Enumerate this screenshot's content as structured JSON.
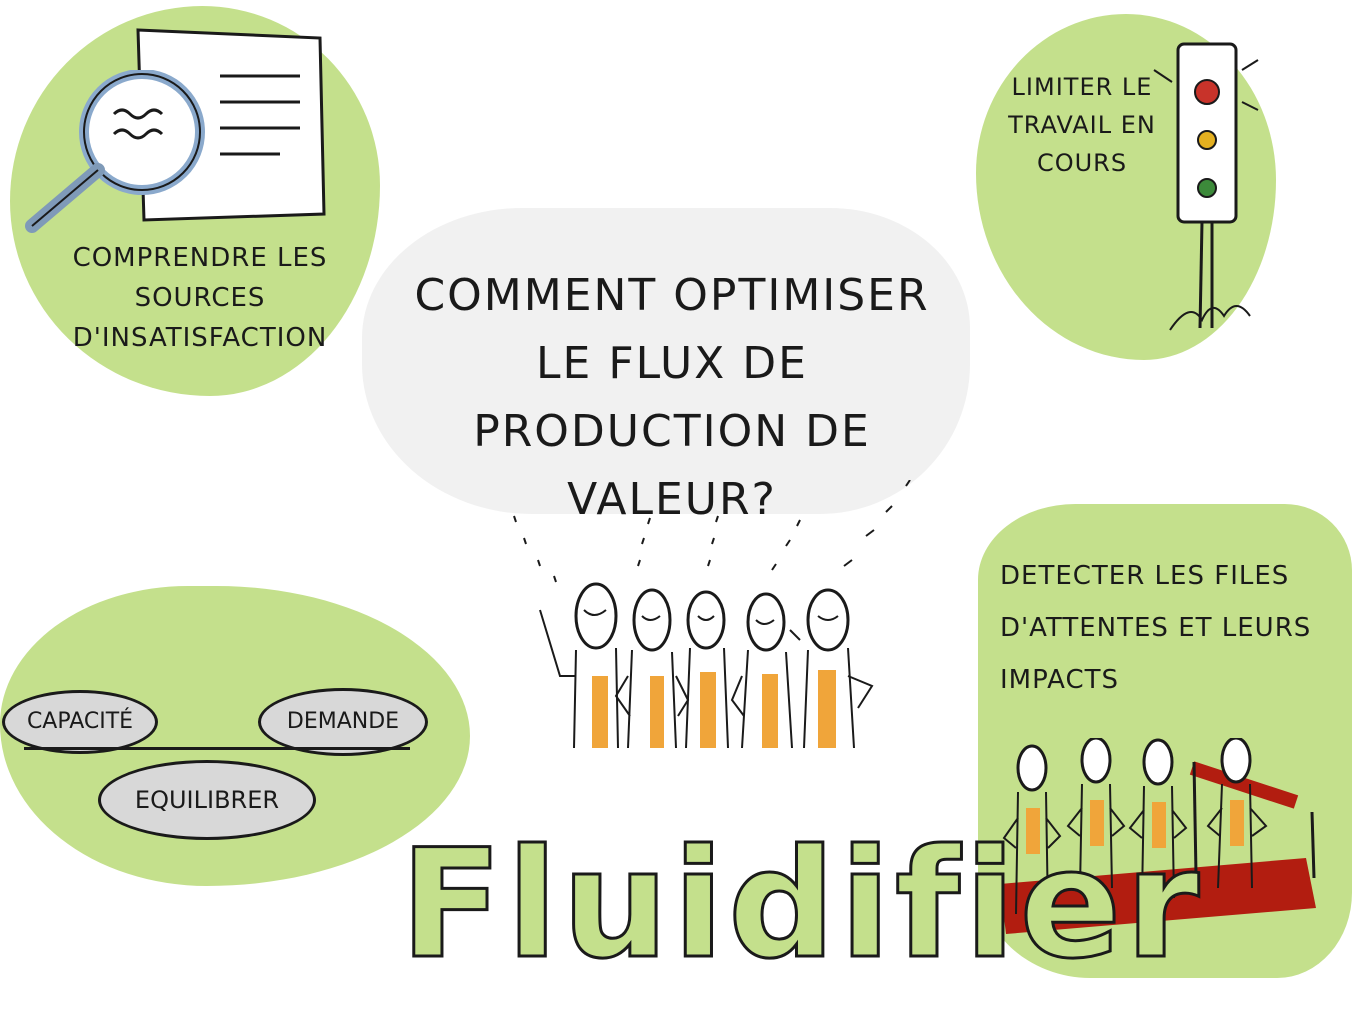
{
  "center": {
    "question": "Comment optimiser le flux de production de valeur?"
  },
  "title": "Fluidifier",
  "panels": {
    "top_left": {
      "label": "Comprendre les sources d'insatisfaction"
    },
    "top_right": {
      "label": "Limiter le travail en cours"
    },
    "bottom_left": {
      "capacity": "Capacité",
      "demand": "Demande",
      "balance": "Equilibrer"
    },
    "bottom_right": {
      "label": "Detecter les files d'attentes et leurs impacts"
    }
  },
  "colors": {
    "green": "#c4e08c",
    "orange": "#f0a53a",
    "red_carpet": "#b21d10",
    "ink": "#1a1a1a"
  },
  "icons": [
    "document-icon",
    "magnifier-icon",
    "traffic-light-icon",
    "people-group-icon",
    "queue-icon"
  ]
}
